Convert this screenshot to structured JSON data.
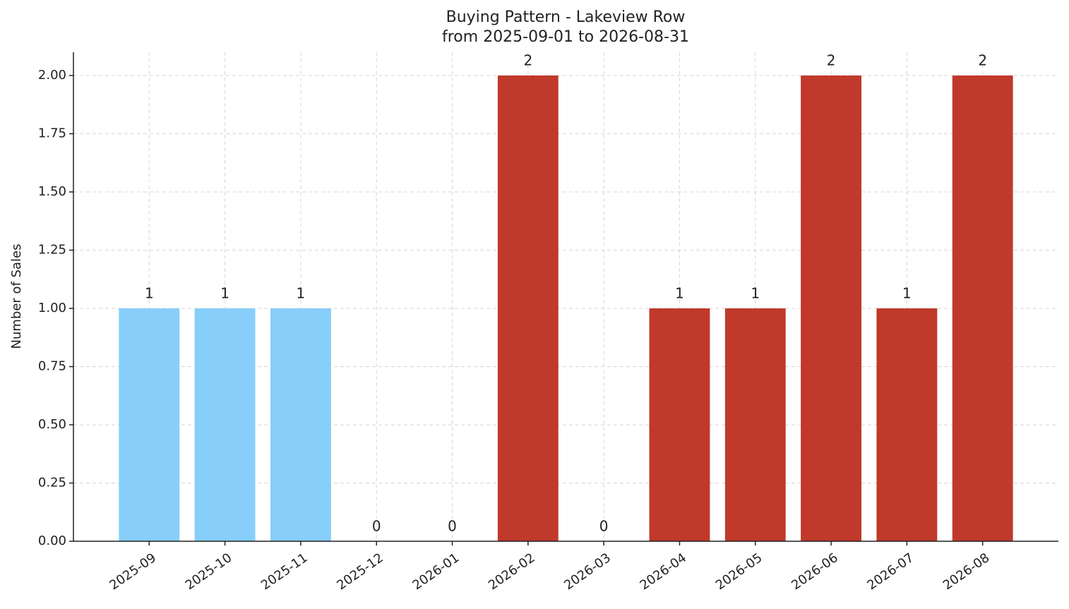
{
  "chart_data": {
    "type": "bar",
    "title": "Buying Pattern - Lakeview Row",
    "subtitle": "from 2025-09-01 to 2026-08-31",
    "y_label": "Number of Sales",
    "categories": [
      "2025-09",
      "2025-10",
      "2025-11",
      "2025-12",
      "2026-01",
      "2026-02",
      "2026-03",
      "2026-04",
      "2026-05",
      "2026-06",
      "2026-07",
      "2026-08"
    ],
    "values": [
      1,
      1,
      1,
      0,
      0,
      2,
      0,
      1,
      1,
      2,
      1,
      2
    ],
    "colors": [
      "#87cefa",
      "#87cefa",
      "#87cefa",
      "#87cefa",
      "#c0392b",
      "#c0392b",
      "#c0392b",
      "#c0392b",
      "#c0392b",
      "#c0392b",
      "#c0392b",
      "#c0392b"
    ],
    "ylim": [
      0,
      2.1
    ],
    "yticks": [
      {
        "value": 0,
        "label": "0.00"
      },
      {
        "value": 0.25,
        "label": "0.25"
      },
      {
        "value": 0.5,
        "label": "0.50"
      },
      {
        "value": 0.75,
        "label": "0.75"
      },
      {
        "value": 1,
        "label": "1.00"
      },
      {
        "value": 1.25,
        "label": "1.25"
      },
      {
        "value": 1.5,
        "label": "1.50"
      },
      {
        "value": 1.75,
        "label": "1.75"
      },
      {
        "value": 2,
        "label": "2.00"
      }
    ],
    "grid": true
  }
}
